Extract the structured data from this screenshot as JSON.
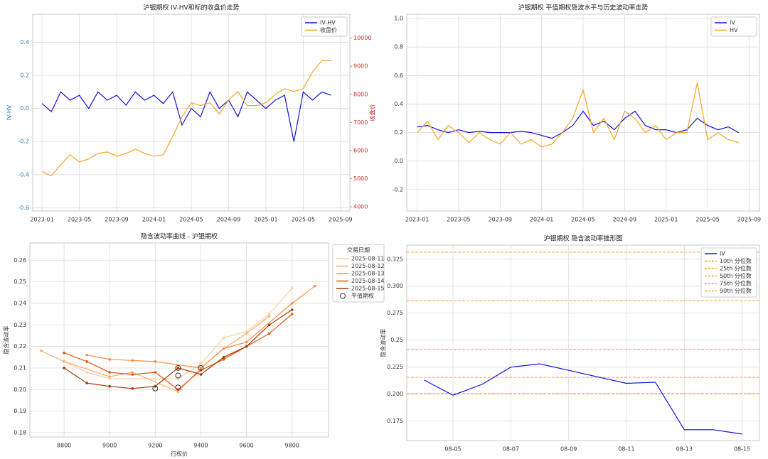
{
  "chart_data": [
    {
      "type": "line",
      "title": "沪银期权 IV-HV和标的收盘价走势",
      "ylabel": "IV-HV",
      "y2label": "收盘价",
      "x": [
        "2023-01",
        "2023-02",
        "2023-03",
        "2023-04",
        "2023-05",
        "2023-06",
        "2023-07",
        "2023-08",
        "2023-09",
        "2023-10",
        "2023-11",
        "2023-12",
        "2024-01",
        "2024-02",
        "2024-03",
        "2024-04",
        "2024-05",
        "2024-06",
        "2024-07",
        "2024-08",
        "2024-09",
        "2024-10",
        "2024-11",
        "2024-12",
        "2025-01",
        "2025-02",
        "2025-03",
        "2025-04",
        "2025-05",
        "2025-06",
        "2025-07",
        "2025-08"
      ],
      "series": [
        {
          "name": "IV-HV",
          "color": "#1010e0",
          "values": [
            0.03,
            -0.02,
            0.1,
            0.05,
            0.08,
            0.0,
            0.1,
            0.05,
            0.08,
            0.02,
            0.1,
            0.05,
            0.08,
            0.03,
            0.1,
            -0.1,
            0.0,
            -0.05,
            0.1,
            0.0,
            0.05,
            -0.05,
            0.1,
            0.05,
            0.0,
            0.05,
            0.08,
            -0.2,
            0.1,
            0.05,
            0.1,
            0.08
          ]
        },
        {
          "name": "收盘价",
          "color": "#f5a623",
          "axis": "y2",
          "values": [
            5250,
            5100,
            5500,
            5850,
            5600,
            5700,
            5900,
            5950,
            5800,
            5900,
            6050,
            5900,
            5800,
            5850,
            6500,
            7200,
            7700,
            7600,
            7700,
            7300,
            7800,
            8100,
            7600,
            7600,
            7700,
            8000,
            8200,
            8100,
            8200,
            8800,
            9200,
            9200
          ]
        }
      ],
      "xlim": [
        "2022-12",
        "2025-10"
      ],
      "xticks": [
        "2023-01",
        "2023-05",
        "2023-09",
        "2024-01",
        "2024-05",
        "2024-09",
        "2025-01",
        "2025-05",
        "2025-09"
      ],
      "ylim": [
        -0.62,
        0.57
      ],
      "yticks": [
        -0.6,
        -0.4,
        -0.2,
        {
          "value": 0,
          "label": "0.0"
        },
        0.2,
        0.4
      ],
      "ytick_color": "#1f77b4",
      "y2lim": [
        3850,
        10850
      ],
      "y2ticks": [
        4000,
        5000,
        6000,
        7000,
        8000,
        9000,
        10000
      ],
      "y2tick_color": "#d62728",
      "grid": true,
      "legend": "upper right"
    },
    {
      "type": "line",
      "title": "沪银期权 平值期权隐波水平与历史波动率走势",
      "x": [
        "2023-01",
        "2023-02",
        "2023-03",
        "2023-04",
        "2023-05",
        "2023-06",
        "2023-07",
        "2023-08",
        "2023-09",
        "2023-10",
        "2023-11",
        "2023-12",
        "2024-01",
        "2024-02",
        "2024-03",
        "2024-04",
        "2024-05",
        "2024-06",
        "2024-07",
        "2024-08",
        "2024-09",
        "2024-10",
        "2024-11",
        "2024-12",
        "2025-01",
        "2025-02",
        "2025-03",
        "2025-04",
        "2025-05",
        "2025-06",
        "2025-07",
        "2025-08"
      ],
      "series": [
        {
          "name": "IV",
          "color": "#1010e0",
          "values": [
            0.24,
            0.25,
            0.22,
            0.2,
            0.22,
            0.2,
            0.21,
            0.2,
            0.2,
            0.2,
            0.21,
            0.2,
            0.18,
            0.16,
            0.2,
            0.25,
            0.35,
            0.25,
            0.28,
            0.22,
            0.3,
            0.35,
            0.25,
            0.22,
            0.22,
            0.2,
            0.22,
            0.3,
            0.25,
            0.22,
            0.24,
            0.2
          ]
        },
        {
          "name": "HV",
          "color": "#f5a623",
          "values": [
            0.2,
            0.28,
            0.15,
            0.25,
            0.2,
            0.13,
            0.2,
            0.15,
            0.12,
            0.2,
            0.12,
            0.15,
            0.1,
            0.12,
            0.2,
            0.3,
            0.5,
            0.2,
            0.3,
            0.15,
            0.35,
            0.3,
            0.2,
            0.25,
            0.15,
            0.2,
            0.2,
            0.55,
            0.15,
            0.2,
            0.15,
            0.13
          ]
        }
      ],
      "xlim": [
        "2022-12",
        "2025-10"
      ],
      "xticks": [
        "2023-01",
        "2023-05",
        "2023-09",
        "2024-01",
        "2024-05",
        "2024-09",
        "2025-01",
        "2025-05",
        "2025-09"
      ],
      "ylim": [
        -0.35,
        1.03
      ],
      "yticks": [
        -0.2,
        {
          "value": 0,
          "label": "0.0"
        },
        0.2,
        0.4,
        0.6,
        0.8,
        {
          "value": 1,
          "label": "1.0"
        }
      ],
      "grid": true,
      "legend": "upper right"
    },
    {
      "type": "line",
      "title": "隐含波动率曲线 - 沪银期权",
      "xlabel": "行权价",
      "ylabel": "隐含波动率",
      "legend_title": "交易日期",
      "series": [
        {
          "name": "2025-08-11",
          "color": "#fdd0a2",
          "x": [
            8800,
            8900,
            9000,
            9300,
            9400,
            9500,
            9600,
            9700,
            9800
          ],
          "values": [
            0.213,
            0.208,
            0.205,
            0.205,
            0.212,
            0.224,
            0.227,
            0.235,
            0.247
          ]
        },
        {
          "name": "2025-08-12",
          "color": "#fdae6b",
          "x": [
            8700,
            8800,
            9000,
            9100,
            9300,
            9400,
            9500,
            9600,
            9700
          ],
          "values": [
            0.218,
            0.213,
            0.206,
            0.208,
            0.199,
            0.21,
            0.219,
            0.226,
            0.234
          ]
        },
        {
          "name": "2025-08-13",
          "color": "#fd8d3c",
          "x": [
            8900,
            9000,
            9100,
            9200,
            9400,
            9500,
            9600,
            9800,
            9900
          ],
          "values": [
            0.216,
            0.214,
            0.2135,
            0.213,
            0.21,
            0.219,
            0.222,
            0.24,
            0.248
          ]
        },
        {
          "name": "2025-08-14",
          "color": "#e6550d",
          "x": [
            8800,
            8900,
            9000,
            9100,
            9200,
            9300,
            9400,
            9500,
            9600,
            9700,
            9800
          ],
          "values": [
            0.217,
            0.213,
            0.208,
            0.207,
            0.208,
            0.2,
            0.209,
            0.214,
            0.22,
            0.226,
            0.235
          ]
        },
        {
          "name": "2025-08-15",
          "color": "#a63603",
          "x": [
            8800,
            8900,
            9000,
            9100,
            9200,
            9300,
            9400,
            9500,
            9600,
            9700,
            9800
          ],
          "values": [
            0.21,
            0.203,
            0.2015,
            0.2005,
            0.2015,
            0.21,
            0.207,
            0.215,
            0.22,
            0.23,
            0.237
          ]
        },
        {
          "name": "平值期权",
          "color": "#333333",
          "style": "scatter",
          "x": [
            9200,
            9300,
            9300,
            9300,
            9400
          ],
          "values": [
            0.2005,
            0.21,
            0.2065,
            0.201,
            0.21
          ]
        }
      ],
      "xlim": [
        8650,
        9960
      ],
      "xticks": [
        8800,
        9000,
        9200,
        9400,
        9600,
        9800
      ],
      "ylim": [
        0.178,
        0.268
      ],
      "yticks": [
        0.18,
        0.19,
        {
          "value": 0.2,
          "label": "0.20"
        },
        0.21,
        0.22,
        0.23,
        0.24,
        0.25,
        0.26
      ],
      "grid": true,
      "legend": "outside right"
    },
    {
      "type": "line",
      "title": "沪银期权 隐含波动率锥形图",
      "ylabel": "隐含波动率",
      "categories": [
        null,
        "08-05",
        null,
        "08-07",
        null,
        "08-09",
        null,
        "08-11",
        null,
        "08-13",
        null,
        "08-15"
      ],
      "series": [
        {
          "name": "IV",
          "color": "#1010e0",
          "values": [
            0.213,
            0.199,
            0.209,
            0.225,
            0.228,
            0.222,
            0.216,
            0.21,
            0.211,
            0.167,
            0.167,
            0.163
          ]
        }
      ],
      "percentiles": [
        {
          "name": "10th 分位数",
          "value": 0.2005
        },
        {
          "name": "25th 分位数",
          "value": 0.2155
        },
        {
          "name": "50th 分位数",
          "value": 0.2415
        },
        {
          "name": "75th 分位数",
          "value": 0.2865
        },
        {
          "name": "90th 分位数",
          "value": 0.3315
        }
      ],
      "percentile_color": "#f5a623",
      "ylim": [
        0.157,
        0.338
      ],
      "yticks": [
        0.175,
        {
          "value": 0.2,
          "label": "0.200"
        },
        0.225,
        0.25,
        0.275,
        {
          "value": 0.3,
          "label": "0.300"
        },
        0.325
      ],
      "grid": true,
      "legend": "upper right"
    }
  ]
}
